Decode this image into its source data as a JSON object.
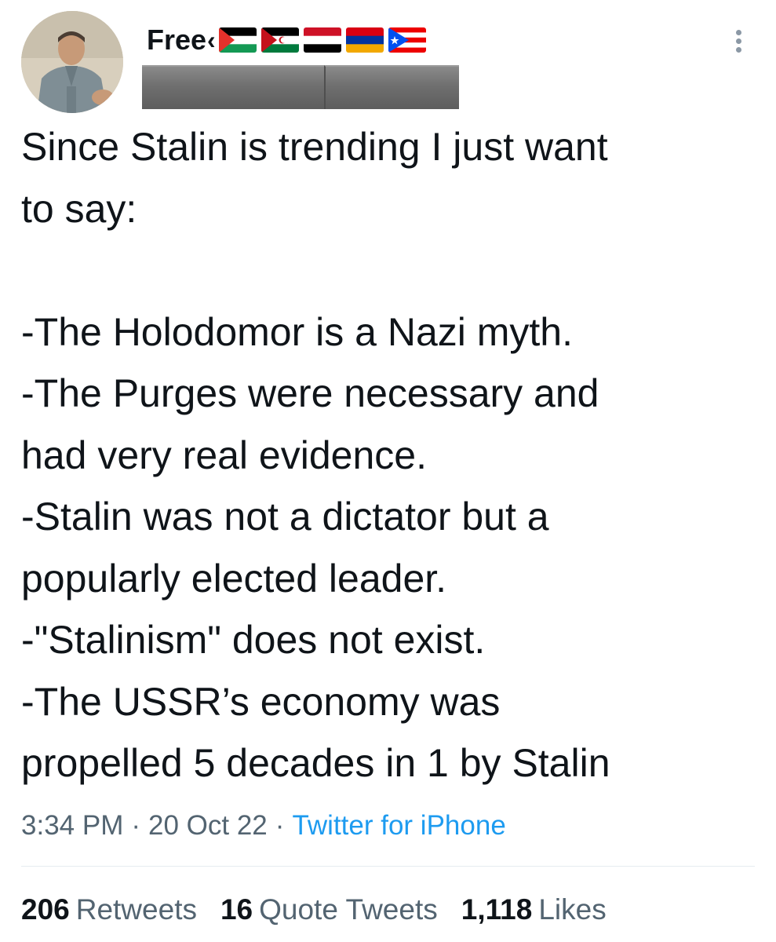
{
  "author": {
    "display_name": "Free",
    "name_glyph": "‹",
    "flags": [
      "palestine-flag-icon",
      "western-sahara-flag-icon",
      "yemen-flag-icon",
      "armenia-flag-icon",
      "puerto-rico-flag-icon"
    ]
  },
  "tweet": {
    "text": "Since Stalin is trending I just want\nto say:\n\n-The Holodomor is a Nazi myth.\n-The Purges were necessary and\nhad very real evidence.\n-Stalin was not a dictator but a\npopularly elected leader.\n-\"Stalinism\" does not exist.\n-The USSR’s economy was\npropelled 5 decades in 1 by Stalin"
  },
  "meta": {
    "time": "3:34 PM",
    "separator": "·",
    "date": "20 Oct 22",
    "source": "Twitter for iPhone"
  },
  "stats": {
    "retweets_count": "206",
    "retweets_label": "Retweets",
    "quotes_count": "16",
    "quotes_label": "Quote Tweets",
    "likes_count": "1,118",
    "likes_label": "Likes"
  },
  "colors": {
    "text_primary": "#0f1419",
    "text_secondary": "#536471",
    "link": "#1d9bf0",
    "divider": "#e6ecf0"
  }
}
